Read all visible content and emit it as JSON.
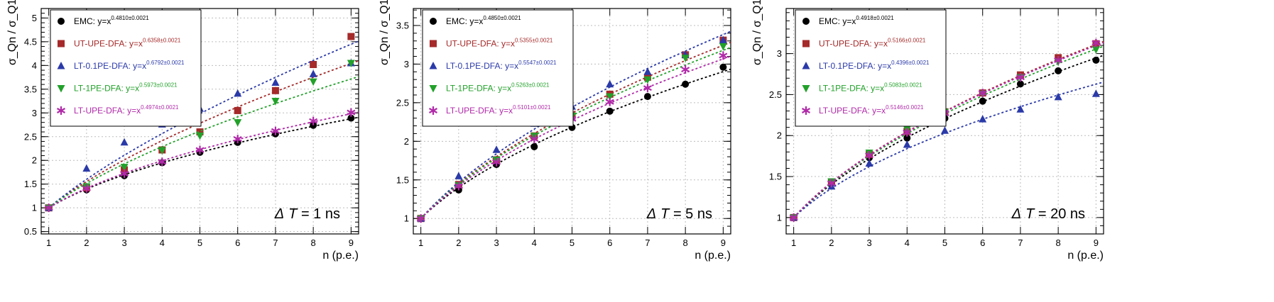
{
  "chart_data": [
    {
      "type": "scatter",
      "title": "",
      "xlabel": "n (p.e.)",
      "ylabel": "σ_Qn / σ_Q1",
      "xlim": [
        0.8,
        9.2
      ],
      "ylim": [
        0.45,
        5.2
      ],
      "xticks": [
        1,
        2,
        3,
        4,
        5,
        6,
        7,
        8,
        9
      ],
      "yticks": [
        0.5,
        1,
        1.5,
        2,
        2.5,
        3,
        3.5,
        4,
        4.5,
        5
      ],
      "grid": true,
      "legend_position": "top-left",
      "annotation": {
        "prefix": "Δ",
        "var": "T",
        "text": " = 1 ns"
      },
      "x": [
        1,
        2,
        3,
        4,
        5,
        6,
        7,
        8,
        9
      ],
      "series": [
        {
          "name": "EMC",
          "label": "EMC: y=x",
          "exponent": "0.4810±0.0021",
          "exp_value": 0.481,
          "color": "#000000",
          "marker": "circle",
          "values": [
            1.0,
            1.38,
            1.68,
            1.95,
            2.17,
            2.38,
            2.56,
            2.74,
            2.89
          ]
        },
        {
          "name": "UT-UPE-DFA",
          "label": "UT-UPE-DFA: y=x",
          "exponent": "0.6358±0.0021",
          "exp_value": 0.6358,
          "color": "#a52a2a",
          "marker": "square",
          "values": [
            1.0,
            1.42,
            1.8,
            2.22,
            2.6,
            3.05,
            3.47,
            4.02,
            4.61
          ]
        },
        {
          "name": "LT-0.1PE-DFA",
          "label": "LT-0.1PE-DFA: y=x",
          "exponent": "0.6792±0.0021",
          "exp_value": 0.6792,
          "color": "#2b3aa8",
          "marker": "triangle-up",
          "values": [
            1.0,
            1.83,
            2.38,
            2.76,
            3.09,
            3.41,
            3.64,
            3.82,
            4.05
          ]
        },
        {
          "name": "LT-1PE-DFA",
          "label": "LT-1PE-DFA: y=x",
          "exponent": "0.5973±0.0021",
          "exp_value": 0.5973,
          "color": "#22a12a",
          "marker": "triangle-down",
          "values": [
            1.0,
            1.45,
            1.86,
            2.21,
            2.52,
            2.8,
            3.25,
            3.66,
            4.05
          ]
        },
        {
          "name": "LT-UPE-DFA",
          "label": "LT-UPE-DFA: y=x",
          "exponent": "0.4974±0.0021",
          "exp_value": 0.4974,
          "color": "#b02aa8",
          "marker": "star",
          "values": [
            1.0,
            1.41,
            1.72,
            1.97,
            2.22,
            2.45,
            2.62,
            2.83,
            3.01
          ]
        }
      ]
    },
    {
      "type": "scatter",
      "title": "",
      "xlabel": "n (p.e.)",
      "ylabel": "σ_Qn / σ_Q1",
      "xlim": [
        0.8,
        9.2
      ],
      "ylim": [
        0.8,
        3.72
      ],
      "xticks": [
        1,
        2,
        3,
        4,
        5,
        6,
        7,
        8,
        9
      ],
      "yticks": [
        1,
        1.5,
        2,
        2.5,
        3,
        3.5
      ],
      "grid": true,
      "legend_position": "top-left",
      "annotation": {
        "prefix": "Δ",
        "var": "T",
        "text": " = 5 ns"
      },
      "x": [
        1,
        2,
        3,
        4,
        5,
        6,
        7,
        8,
        9
      ],
      "series": [
        {
          "name": "EMC",
          "label": "EMC: y=x",
          "exponent": "0.4850±0.0021",
          "exp_value": 0.485,
          "color": "#000000",
          "marker": "circle",
          "values": [
            1.0,
            1.37,
            1.7,
            1.93,
            2.18,
            2.39,
            2.58,
            2.74,
            2.96
          ]
        },
        {
          "name": "UT-UPE-DFA",
          "label": "UT-UPE-DFA: y=x",
          "exponent": "0.5355±0.0021",
          "exp_value": 0.5355,
          "color": "#a52a2a",
          "marker": "square",
          "values": [
            1.0,
            1.44,
            1.76,
            2.07,
            2.33,
            2.61,
            2.83,
            3.12,
            3.31
          ]
        },
        {
          "name": "LT-0.1PE-DFA",
          "label": "LT-0.1PE-DFA: y=x",
          "exponent": "0.5547±0.0021",
          "exp_value": 0.5547,
          "color": "#2b3aa8",
          "marker": "triangle-up",
          "values": [
            1.0,
            1.55,
            1.89,
            2.23,
            2.45,
            2.74,
            2.9,
            3.12,
            3.31
          ]
        },
        {
          "name": "LT-1PE-DFA",
          "label": "LT-1PE-DFA: y=x",
          "exponent": "0.5263±0.0021",
          "exp_value": 0.5263,
          "color": "#22a12a",
          "marker": "triangle-down",
          "values": [
            1.0,
            1.43,
            1.76,
            2.07,
            2.33,
            2.58,
            2.8,
            3.08,
            3.23
          ]
        },
        {
          "name": "LT-UPE-DFA",
          "label": "LT-UPE-DFA: y=x",
          "exponent": "0.5101±0.0021",
          "exp_value": 0.5101,
          "color": "#b02aa8",
          "marker": "star",
          "values": [
            1.0,
            1.42,
            1.73,
            2.03,
            2.29,
            2.51,
            2.69,
            2.93,
            3.11
          ]
        }
      ]
    },
    {
      "type": "scatter",
      "title": "",
      "xlabel": "n (p.e.)",
      "ylabel": "σ_Qn / σ_Q1",
      "xlim": [
        0.8,
        9.2
      ],
      "ylim": [
        0.8,
        3.55
      ],
      "xticks": [
        1,
        2,
        3,
        4,
        5,
        6,
        7,
        8,
        9
      ],
      "yticks": [
        1,
        1.5,
        2,
        2.5,
        3
      ],
      "grid": true,
      "legend_position": "top-left",
      "annotation": {
        "prefix": "Δ",
        "var": "T",
        "text": " = 20 ns"
      },
      "x": [
        1,
        2,
        3,
        4,
        5,
        6,
        7,
        8,
        9
      ],
      "series": [
        {
          "name": "EMC",
          "label": "EMC: y=x",
          "exponent": "0.4918±0.0021",
          "exp_value": 0.4918,
          "color": "#000000",
          "marker": "circle",
          "values": [
            1.0,
            1.42,
            1.73,
            1.97,
            2.21,
            2.42,
            2.63,
            2.79,
            2.92
          ]
        },
        {
          "name": "UT-UPE-DFA",
          "label": "UT-UPE-DFA: y=x",
          "exponent": "0.5166±0.0021",
          "exp_value": 0.5166,
          "color": "#a52a2a",
          "marker": "square",
          "values": [
            1.0,
            1.43,
            1.77,
            2.05,
            2.29,
            2.52,
            2.74,
            2.95,
            3.12
          ]
        },
        {
          "name": "LT-0.1PE-DFA",
          "label": "LT-0.1PE-DFA: y=x",
          "exponent": "0.4396±0.0021",
          "exp_value": 0.4396,
          "color": "#2b3aa8",
          "marker": "triangle-up",
          "values": [
            1.0,
            1.38,
            1.66,
            1.89,
            2.06,
            2.2,
            2.32,
            2.47,
            2.51
          ]
        },
        {
          "name": "LT-1PE-DFA",
          "label": "LT-1PE-DFA: y=x",
          "exponent": "0.5083±0.0021",
          "exp_value": 0.5083,
          "color": "#22a12a",
          "marker": "triangle-down",
          "values": [
            1.0,
            1.44,
            1.79,
            2.08,
            2.29,
            2.51,
            2.71,
            2.9,
            3.05
          ]
        },
        {
          "name": "LT-UPE-DFA",
          "label": "LT-UPE-DFA: y=x",
          "exponent": "0.5146±0.0021",
          "exp_value": 0.5146,
          "color": "#b02aa8",
          "marker": "star",
          "values": [
            1.0,
            1.42,
            1.76,
            2.04,
            2.27,
            2.52,
            2.71,
            2.92,
            3.13
          ]
        }
      ]
    }
  ]
}
